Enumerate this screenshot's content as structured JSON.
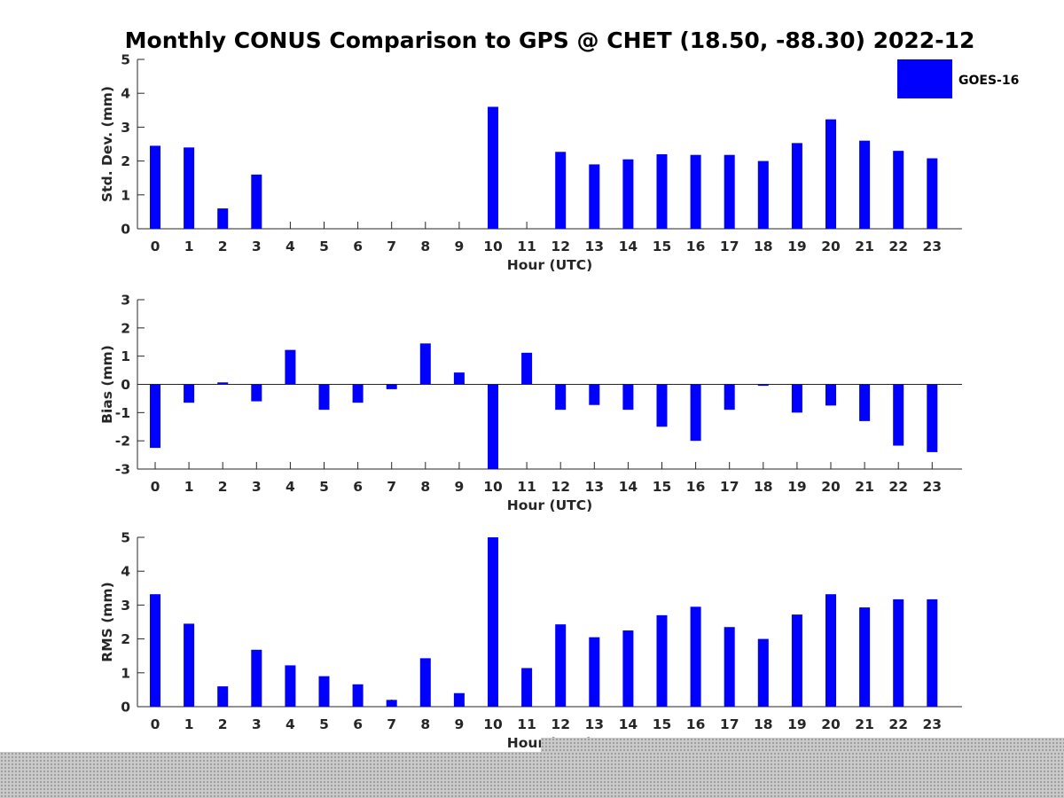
{
  "title": "Monthly CONUS Comparison to GPS @ CHET (18.50, -88.30) 2022-12",
  "colors": {
    "bar": "#0000ff",
    "axis": "#262626",
    "noise": "#c9c9c9"
  },
  "legend": {
    "label": "GOES-16"
  },
  "chart_data": [
    {
      "type": "bar",
      "ylabel": "Std. Dev. (mm)",
      "xlabel": "Hour (UTC)",
      "ylim": [
        0,
        5
      ],
      "yticks": [
        0,
        1,
        2,
        3,
        4,
        5
      ],
      "categories": [
        "0",
        "1",
        "2",
        "3",
        "4",
        "5",
        "6",
        "7",
        "8",
        "9",
        "10",
        "11",
        "12",
        "13",
        "14",
        "15",
        "16",
        "17",
        "18",
        "19",
        "20",
        "21",
        "22",
        "23"
      ],
      "series": [
        {
          "name": "GOES-16",
          "values": [
            2.45,
            2.4,
            0.6,
            1.6,
            null,
            null,
            null,
            null,
            null,
            null,
            3.6,
            null,
            2.27,
            1.9,
            2.05,
            2.2,
            2.18,
            2.18,
            2.0,
            2.53,
            3.23,
            2.6,
            2.3,
            2.08
          ]
        }
      ],
      "legend": "top-right",
      "grid": false
    },
    {
      "type": "bar",
      "ylabel": "Bias (mm)",
      "xlabel": "Hour (UTC)",
      "ylim": [
        -3,
        3
      ],
      "yticks": [
        -3,
        -2,
        -1,
        0,
        1,
        2,
        3
      ],
      "categories": [
        "0",
        "1",
        "2",
        "3",
        "4",
        "5",
        "6",
        "7",
        "8",
        "9",
        "10",
        "11",
        "12",
        "13",
        "14",
        "15",
        "16",
        "17",
        "18",
        "19",
        "20",
        "21",
        "22",
        "23"
      ],
      "series": [
        {
          "name": "GOES-16",
          "values": [
            -2.25,
            -0.65,
            0.07,
            -0.6,
            1.22,
            -0.9,
            -0.65,
            -0.17,
            1.45,
            0.42,
            -3.0,
            1.12,
            -0.9,
            -0.73,
            -0.9,
            -1.5,
            -2.0,
            -0.9,
            -0.05,
            -1.0,
            -0.75,
            -1.3,
            -2.17,
            -2.4
          ]
        }
      ],
      "grid": false
    },
    {
      "type": "bar",
      "ylabel": "RMS (mm)",
      "xlabel": "Hour (UTC)",
      "ylim": [
        0,
        5
      ],
      "yticks": [
        0,
        1,
        2,
        3,
        4,
        5
      ],
      "categories": [
        "0",
        "1",
        "2",
        "3",
        "4",
        "5",
        "6",
        "7",
        "8",
        "9",
        "10",
        "11",
        "12",
        "13",
        "14",
        "15",
        "16",
        "17",
        "18",
        "19",
        "20",
        "21",
        "22",
        "23"
      ],
      "series": [
        {
          "name": "GOES-16",
          "values": [
            3.32,
            2.45,
            0.6,
            1.68,
            1.22,
            0.9,
            0.66,
            0.2,
            1.43,
            0.4,
            5.0,
            1.14,
            2.43,
            2.05,
            2.25,
            2.7,
            2.95,
            2.35,
            2.0,
            2.72,
            3.32,
            2.93,
            3.17,
            3.17
          ]
        }
      ],
      "grid": false
    }
  ]
}
